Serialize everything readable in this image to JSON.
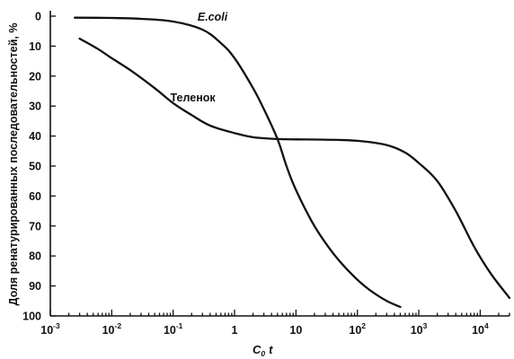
{
  "chart_data": {
    "type": "line",
    "title": "",
    "xlabel": "C",
    "xlabel_sub": "0",
    "xlabel_var": "t",
    "ylabel": "Доля ренатурированных последовательностей, %",
    "x_scale": "log",
    "xlim": [
      0.001,
      30000
    ],
    "ylim": [
      0,
      100
    ],
    "y_inverted": true,
    "grid": false,
    "x_ticks": [
      {
        "value": 0.001,
        "base": "10",
        "exp": "-3"
      },
      {
        "value": 0.01,
        "base": "10",
        "exp": "-2"
      },
      {
        "value": 0.1,
        "base": "10",
        "exp": "-1"
      },
      {
        "value": 1,
        "base": "1",
        "exp": ""
      },
      {
        "value": 10,
        "base": "10",
        "exp": ""
      },
      {
        "value": 100,
        "base": "10",
        "exp": "2"
      },
      {
        "value": 1000,
        "base": "10",
        "exp": "3"
      },
      {
        "value": 10000,
        "base": "10",
        "exp": "4"
      }
    ],
    "y_ticks": [
      0,
      10,
      20,
      30,
      40,
      50,
      60,
      70,
      80,
      90,
      100
    ],
    "series": [
      {
        "name": "E.coli",
        "label_style": "italic",
        "label_at": {
          "x": 0.25,
          "y": 0
        },
        "points": [
          [
            0.0025,
            0.5
          ],
          [
            0.01,
            0.6
          ],
          [
            0.03,
            0.9
          ],
          [
            0.1,
            1.8
          ],
          [
            0.3,
            4.5
          ],
          [
            0.6,
            9
          ],
          [
            1,
            14
          ],
          [
            2,
            24
          ],
          [
            3,
            31
          ],
          [
            5,
            41
          ],
          [
            7,
            50
          ],
          [
            10,
            58
          ],
          [
            20,
            70
          ],
          [
            40,
            79
          ],
          [
            80,
            86
          ],
          [
            150,
            91
          ],
          [
            300,
            95
          ],
          [
            500,
            97
          ]
        ]
      },
      {
        "name": "Теленок",
        "label_style": "normal",
        "label_at": {
          "x": 0.09,
          "y": 27
        },
        "points": [
          [
            0.003,
            7.5
          ],
          [
            0.006,
            11
          ],
          [
            0.01,
            14
          ],
          [
            0.02,
            18
          ],
          [
            0.05,
            24
          ],
          [
            0.1,
            29
          ],
          [
            0.2,
            33
          ],
          [
            0.4,
            36.5
          ],
          [
            1,
            39
          ],
          [
            2,
            40.4
          ],
          [
            5,
            41
          ],
          [
            10,
            41.1
          ],
          [
            30,
            41.2
          ],
          [
            100,
            41.6
          ],
          [
            300,
            43
          ],
          [
            600,
            45.5
          ],
          [
            1000,
            49
          ],
          [
            2000,
            55
          ],
          [
            4000,
            65
          ],
          [
            8000,
            77
          ],
          [
            15000,
            86
          ],
          [
            30000,
            94
          ]
        ]
      }
    ]
  }
}
